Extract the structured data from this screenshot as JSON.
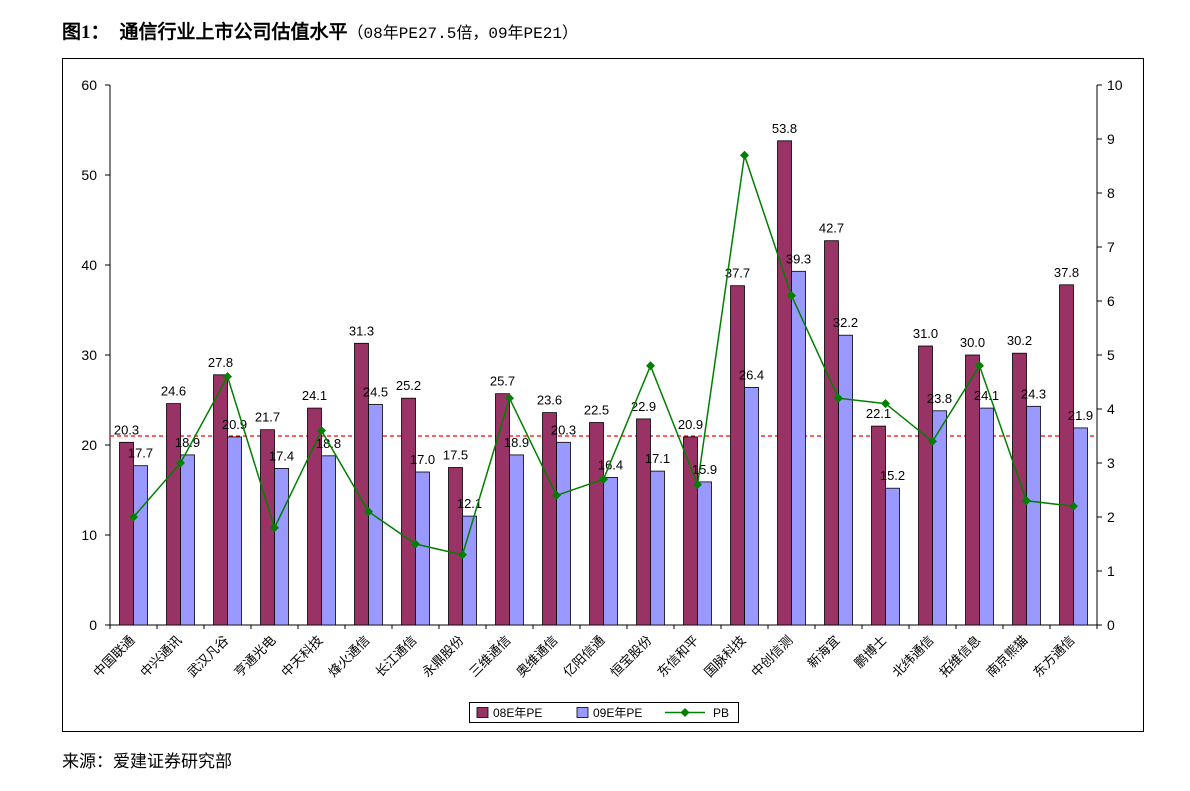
{
  "chart_data": {
    "type": "bar",
    "figure_label": "图1：",
    "title": "通信行业上市公司估值水平",
    "subtitle": "（08年PE27.5倍，09年PE21）",
    "categories": [
      "中国联通",
      "中兴通讯",
      "武汉凡谷",
      "亨通光电",
      "中天科技",
      "烽火通信",
      "长江通信",
      "永鼎股份",
      "三维通信",
      "奥维通信",
      "亿阳信通",
      "恒宝股份",
      "东信和平",
      "国脉科技",
      "中创信测",
      "新海宜",
      "鹏博士",
      "北纬通信",
      "拓维信息",
      "南京熊猫",
      "东方通信"
    ],
    "series": [
      {
        "name": "08E年PE",
        "type": "bar",
        "axis": "left",
        "color": "#993366",
        "values": [
          20.3,
          24.6,
          27.8,
          21.7,
          24.1,
          31.3,
          25.2,
          17.5,
          25.7,
          23.6,
          22.5,
          22.9,
          20.9,
          37.7,
          53.8,
          42.7,
          22.1,
          31.0,
          30.0,
          30.2,
          37.8
        ]
      },
      {
        "name": "09E年PE",
        "type": "bar",
        "axis": "left",
        "color": "#9999FF",
        "values": [
          17.7,
          18.9,
          20.9,
          17.4,
          18.8,
          24.5,
          17.0,
          12.1,
          18.9,
          20.3,
          16.4,
          17.1,
          15.9,
          26.4,
          39.3,
          32.2,
          15.2,
          23.8,
          24.1,
          24.3,
          21.9
        ]
      },
      {
        "name": "PB",
        "type": "line",
        "axis": "right",
        "marker": "diamond",
        "color": "#008000",
        "values": [
          2.0,
          3.0,
          4.6,
          1.8,
          3.6,
          2.1,
          1.5,
          1.3,
          4.2,
          2.4,
          2.7,
          4.8,
          2.6,
          8.7,
          6.1,
          4.2,
          4.1,
          3.4,
          4.8,
          2.3,
          2.2
        ]
      }
    ],
    "ylim": [
      0,
      60
    ],
    "yticks": [
      0,
      10,
      20,
      30,
      40,
      50,
      60
    ],
    "y2lim": [
      0,
      10
    ],
    "y2ticks": [
      0,
      1,
      2,
      3,
      4,
      5,
      6,
      7,
      8,
      9,
      10
    ],
    "reference_line": {
      "value": 21,
      "axis": "left",
      "color": "#FF0000",
      "style": "dashed"
    },
    "data_labels": true,
    "grid": false,
    "legend": "bottom"
  },
  "source": "来源：爱建证券研究部"
}
